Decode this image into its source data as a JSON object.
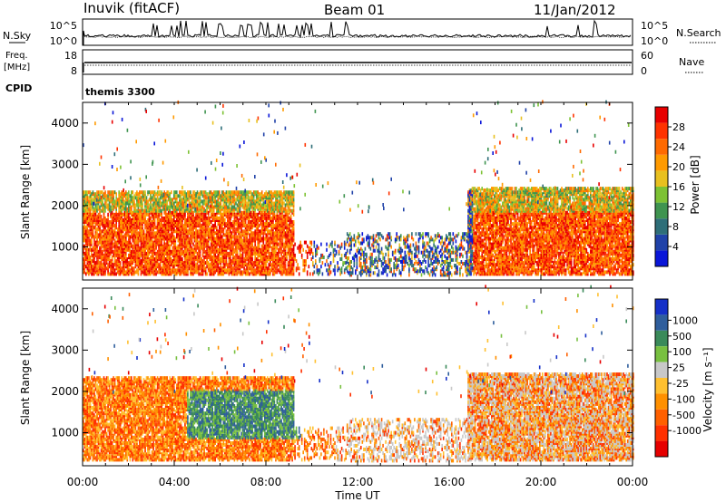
{
  "header": {
    "station": "Inuvik (fitACF)",
    "beam": "Beam 01",
    "date": "11/Jan/2012"
  },
  "summary_panels": {
    "nsky": {
      "label": "N.Sky",
      "ticks": [
        "10^5",
        "10^0"
      ]
    },
    "nsearch": {
      "label": "N.Search",
      "ticks": [
        "10^5",
        "10^0"
      ]
    },
    "freq": {
      "label_top": "Freq.",
      "label_bottom": "[MHz]",
      "ticks": [
        "18",
        "8"
      ]
    },
    "nave": {
      "label": "Nave",
      "ticks": [
        "60",
        "0"
      ]
    },
    "cpid": {
      "label": "CPID",
      "value": "themis 3300"
    }
  },
  "chart_data": [
    {
      "type": "heatmap",
      "title": "",
      "ylabel": "Slant Range [km]",
      "xlabel": "",
      "xlim": [
        0,
        24
      ],
      "ylim": [
        200,
        4500
      ],
      "yticks": [
        1000,
        2000,
        3000,
        4000
      ],
      "colorbar": {
        "label": "Power [dB]",
        "range": [
          0,
          32
        ],
        "ticks": [
          4,
          8,
          12,
          16,
          20,
          24,
          28
        ],
        "colors": [
          "#0a16d8",
          "#2042a8",
          "#2e6e78",
          "#3f9450",
          "#7dc234",
          "#e8c020",
          "#ff9a00",
          "#ff6a00",
          "#ff3300",
          "#e80000"
        ]
      }
    },
    {
      "type": "heatmap",
      "title": "",
      "ylabel": "Slant Range [km]",
      "xlabel": "Time UT",
      "xlim": [
        0,
        24
      ],
      "ylim": [
        200,
        4500
      ],
      "yticks": [
        1000,
        2000,
        3000,
        4000
      ],
      "xticks": [
        "00:00",
        "04:00",
        "08:00",
        "12:00",
        "16:00",
        "20:00",
        "00:00"
      ],
      "colorbar": {
        "label": "Velocity [m s⁻¹]",
        "ticks": [
          "1000",
          "500",
          "100",
          "25",
          "-25",
          "-100",
          "-500",
          "-1000"
        ],
        "colors": [
          "#1530c8",
          "#2f5e9c",
          "#3a8a5a",
          "#78c040",
          "#c8c8c8",
          "#ffc030",
          "#ff9000",
          "#ff6000",
          "#ff3000",
          "#e60000"
        ]
      }
    }
  ]
}
